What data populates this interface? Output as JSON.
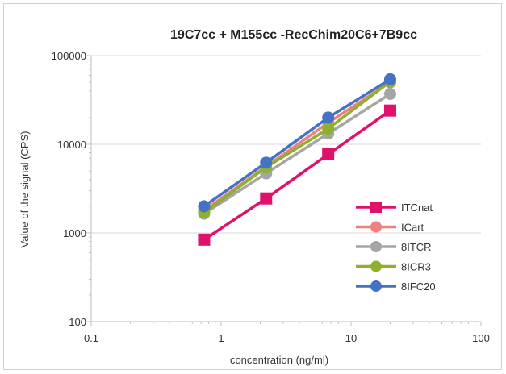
{
  "chart_data": {
    "type": "line",
    "title": "19C7cc + M155cc -RecChim20C6+7B9cc",
    "xlabel": "concentration (ng/ml)",
    "ylabel": "Value of the signal (CPS)",
    "x_scale": "log",
    "y_scale": "log",
    "xlim": [
      0.1,
      100
    ],
    "ylim": [
      100,
      100000
    ],
    "x_ticks": [
      "0.1",
      "1",
      "10",
      "100"
    ],
    "y_ticks": [
      "100",
      "1000",
      "10000",
      "100000"
    ],
    "grid": "horizontal major",
    "legend_position": "right",
    "x": [
      0.74,
      2.22,
      6.67,
      20
    ],
    "series": [
      {
        "name": "ITCnat",
        "color": "#e0116b",
        "marker": "square",
        "values": [
          840,
          2450,
          7700,
          24000
        ]
      },
      {
        "name": "ICart",
        "color": "#f08080",
        "marker": "circle",
        "values": [
          1800,
          5600,
          17500,
          50000
        ]
      },
      {
        "name": "8ITCR",
        "color": "#a5a5a5",
        "marker": "circle",
        "values": [
          1650,
          4700,
          13200,
          37000
        ]
      },
      {
        "name": "8ICR3",
        "color": "#8db12b",
        "marker": "circle",
        "values": [
          1700,
          5500,
          15000,
          51000
        ]
      },
      {
        "name": "8IFC20",
        "color": "#4472c4",
        "marker": "circle",
        "values": [
          2000,
          6200,
          20000,
          54000
        ]
      }
    ]
  }
}
